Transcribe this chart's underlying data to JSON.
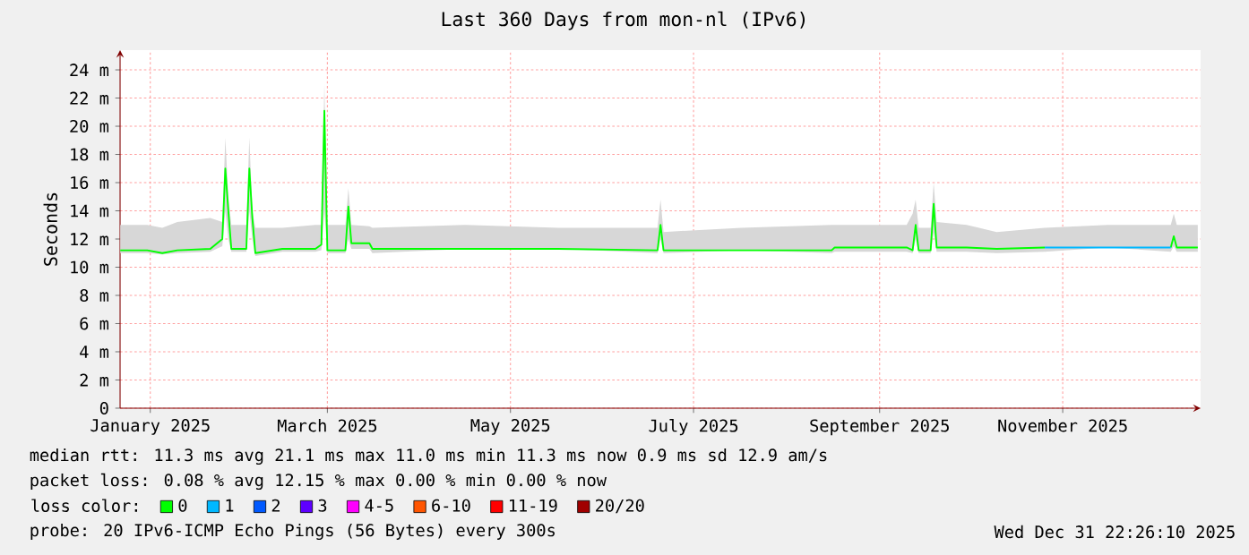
{
  "chart_data": {
    "type": "line",
    "title": "Last 360 Days from mon-nl (IPv6)",
    "ylabel": "Seconds",
    "xlim": [
      "2025-01-05T22:26",
      "2025-12-31T22:26"
    ],
    "xticks": [
      {
        "value": "2025-01-16",
        "label": "January 2025"
      },
      {
        "value": "2025-03-16",
        "label": "March 2025"
      },
      {
        "value": "2025-05-16",
        "label": "May 2025"
      },
      {
        "value": "2025-07-16",
        "label": "July 2025"
      },
      {
        "value": "2025-09-16",
        "label": "September 2025"
      },
      {
        "value": "2025-11-16",
        "label": "November 2025"
      }
    ],
    "ylim": [
      0,
      25.4
    ],
    "yticks": [
      0,
      {
        "value": 2,
        "label": "2 m"
      },
      {
        "value": 4,
        "label": "4 m"
      },
      {
        "value": 6,
        "label": "6 m"
      },
      {
        "value": 8,
        "label": "8 m"
      },
      {
        "value": 10,
        "label": "10 m"
      },
      {
        "value": 12,
        "label": "12 m"
      },
      {
        "value": 14,
        "label": "14 m"
      },
      {
        "value": 16,
        "label": "16 m"
      },
      {
        "value": 18,
        "label": "18 m"
      },
      {
        "value": 20,
        "label": "20 m"
      },
      {
        "value": 22,
        "label": "22 m"
      },
      {
        "value": 24,
        "label": "24 m"
      }
    ],
    "grid": true,
    "legend": "bottom",
    "legend_title": "loss color:",
    "x": [
      "2025-01-06",
      "2025-01-15",
      "2025-01-20",
      "2025-01-25",
      "2025-02-05",
      "2025-02-09",
      "2025-02-10",
      "2025-02-11",
      "2025-02-12",
      "2025-02-17",
      "2025-02-18",
      "2025-02-19",
      "2025-02-20",
      "2025-03-01",
      "2025-03-12",
      "2025-03-14",
      "2025-03-15",
      "2025-03-16",
      "2025-03-22",
      "2025-03-23",
      "2025-03-24",
      "2025-03-30",
      "2025-03-31",
      "2025-05-01",
      "2025-06-01",
      "2025-07-04",
      "2025-07-05",
      "2025-07-06",
      "2025-08-01",
      "2025-08-31",
      "2025-09-01",
      "2025-09-25",
      "2025-09-27",
      "2025-09-28",
      "2025-09-29",
      "2025-10-03",
      "2025-10-04",
      "2025-10-05",
      "2025-10-15",
      "2025-10-25",
      "2025-11-10",
      "2025-12-01",
      "2025-12-22",
      "2025-12-23",
      "2025-12-24",
      "2025-12-31"
    ],
    "series": [
      {
        "name": "0",
        "color": "#00ff00",
        "values": [
          11.2,
          11.2,
          11.0,
          11.2,
          11.3,
          12.0,
          17.0,
          14.0,
          11.3,
          11.3,
          17.0,
          13.5,
          11.0,
          11.3,
          11.3,
          11.6,
          21.1,
          11.2,
          11.2,
          14.3,
          11.7,
          11.7,
          11.3,
          11.3,
          11.3,
          11.2,
          13.0,
          11.2,
          11.2,
          11.2,
          11.4,
          11.4,
          11.2,
          13.0,
          11.2,
          11.2,
          14.5,
          11.4,
          11.4,
          11.3,
          11.4,
          null,
          11.4,
          12.2,
          11.4,
          11.4
        ],
        "lower": [
          11.0,
          11.0,
          10.9,
          11.0,
          11.1,
          11.5,
          14.0,
          12.0,
          11.1,
          11.1,
          14.0,
          12.0,
          10.8,
          11.1,
          11.1,
          11.2,
          14.0,
          11.0,
          11.0,
          12.0,
          11.3,
          11.3,
          11.0,
          11.3,
          11.3,
          11.0,
          12.0,
          11.0,
          11.2,
          11.0,
          11.1,
          11.1,
          11.0,
          12.0,
          11.0,
          11.0,
          12.5,
          11.1,
          11.1,
          11.0,
          11.1,
          11.4,
          11.1,
          11.5,
          11.1,
          11.1
        ],
        "upper": [
          13.0,
          13.0,
          12.8,
          13.2,
          13.5,
          13.2,
          19.2,
          15.0,
          13.0,
          13.0,
          19.2,
          14.0,
          12.8,
          12.8,
          13.0,
          13.0,
          23.0,
          13.0,
          13.0,
          15.6,
          13.0,
          12.9,
          12.8,
          13.0,
          12.8,
          12.8,
          14.8,
          12.5,
          12.8,
          13.0,
          13.0,
          13.0,
          13.8,
          14.8,
          12.8,
          12.8,
          16.0,
          13.2,
          13.0,
          12.5,
          12.8,
          13.0,
          13.0,
          13.8,
          13.0,
          13.0
        ]
      },
      {
        "name": "1",
        "color": "#00b8ff",
        "values": [
          null,
          null,
          null,
          null,
          null,
          null,
          null,
          null,
          null,
          null,
          null,
          null,
          null,
          null,
          null,
          null,
          null,
          null,
          null,
          null,
          null,
          null,
          null,
          null,
          null,
          null,
          null,
          null,
          null,
          null,
          null,
          null,
          null,
          null,
          null,
          null,
          null,
          null,
          null,
          null,
          11.4,
          11.4,
          11.4,
          null,
          null,
          null
        ]
      },
      {
        "name": "2",
        "color": "#0059ff",
        "values": [
          null,
          null,
          null,
          null,
          null,
          null,
          null,
          null,
          null,
          null,
          null,
          null,
          null,
          null,
          null,
          null,
          null,
          null,
          null,
          null,
          null,
          null,
          null,
          null,
          null,
          null,
          null,
          null,
          null,
          null,
          null,
          null,
          null,
          null,
          null,
          null,
          null,
          null,
          null,
          null,
          null,
          null,
          null,
          null,
          null,
          null
        ]
      },
      {
        "name": "3",
        "color": "#5e00ff",
        "values": [
          null,
          null,
          null,
          null,
          null,
          null,
          null,
          null,
          null,
          null,
          null,
          null,
          null,
          null,
          null,
          null,
          null,
          null,
          null,
          null,
          null,
          null,
          null,
          null,
          null,
          null,
          null,
          null,
          null,
          null,
          null,
          null,
          null,
          null,
          null,
          null,
          null,
          null,
          null,
          null,
          null,
          null,
          null,
          null,
          null,
          null
        ]
      },
      {
        "name": "4-5",
        "color": "#ff00ff",
        "values": [
          null,
          null,
          null,
          null,
          null,
          null,
          null,
          null,
          null,
          null,
          null,
          null,
          null,
          null,
          null,
          null,
          null,
          null,
          null,
          null,
          null,
          null,
          null,
          null,
          null,
          null,
          null,
          null,
          null,
          null,
          null,
          null,
          null,
          null,
          null,
          null,
          null,
          null,
          null,
          null,
          null,
          null,
          null,
          null,
          null,
          null
        ]
      },
      {
        "name": "6-10",
        "color": "#ff5500",
        "values": [
          null,
          null,
          null,
          null,
          null,
          null,
          null,
          null,
          null,
          null,
          null,
          null,
          null,
          null,
          null,
          null,
          null,
          null,
          null,
          null,
          null,
          null,
          null,
          null,
          null,
          null,
          null,
          null,
          null,
          null,
          null,
          null,
          null,
          null,
          null,
          null,
          null,
          null,
          null,
          null,
          null,
          null,
          null,
          null,
          null,
          null
        ]
      },
      {
        "name": "11-19",
        "color": "#ff0000",
        "values": [
          null,
          null,
          null,
          null,
          null,
          null,
          null,
          null,
          null,
          null,
          null,
          null,
          null,
          null,
          null,
          null,
          null,
          null,
          null,
          null,
          null,
          null,
          null,
          null,
          null,
          null,
          null,
          null,
          null,
          null,
          null,
          null,
          null,
          null,
          null,
          null,
          null,
          null,
          null,
          null,
          null,
          null,
          null,
          null,
          null,
          null
        ]
      },
      {
        "name": "20/20",
        "color": "#a10000",
        "values": [
          null,
          null,
          null,
          null,
          null,
          null,
          null,
          null,
          null,
          null,
          null,
          null,
          null,
          null,
          null,
          null,
          null,
          null,
          null,
          null,
          null,
          null,
          null,
          null,
          null,
          null,
          null,
          null,
          null,
          null,
          null,
          null,
          null,
          null,
          null,
          null,
          null,
          null,
          null,
          null,
          null,
          null,
          null,
          null,
          null,
          null
        ]
      }
    ],
    "annotations": [
      "median rtt:  11.3 ms avg  21.1 ms max  11.0 ms min  11.3 ms now  0.9 ms sd  12.9   am/s",
      "packet loss: 0.08 % avg  12.15 % max  0.00 % min  0.00 % now",
      "probe:       20 IPv6-ICMP Echo Pings (56 Bytes) every 300s",
      "Wed Dec 31 22:26:10 2025"
    ]
  }
}
